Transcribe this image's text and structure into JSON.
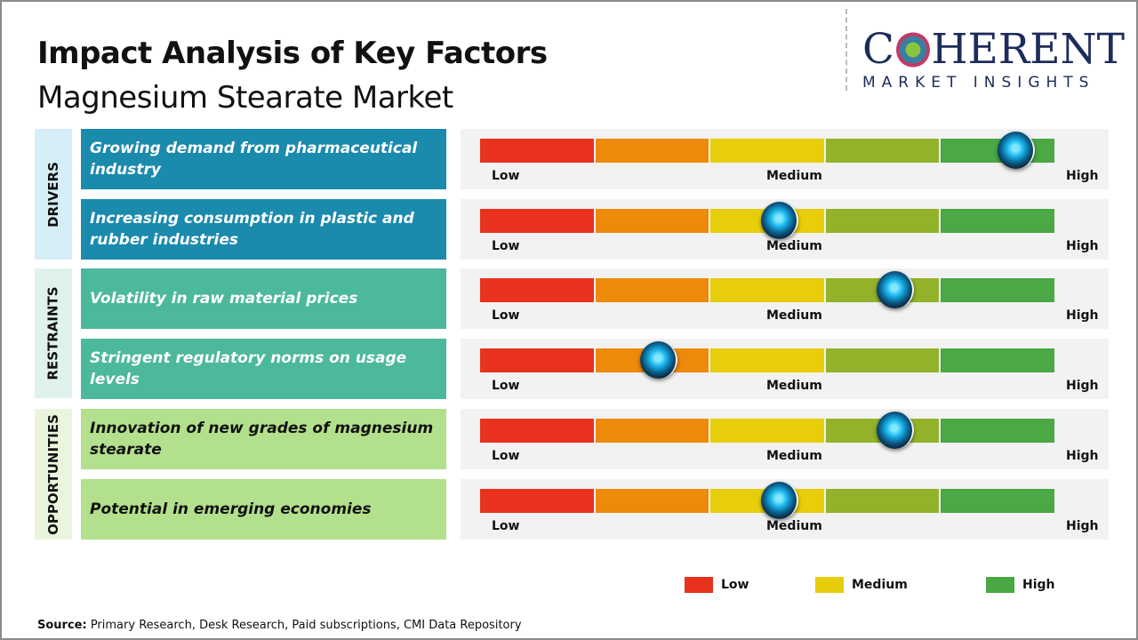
{
  "header": {
    "title": "Impact Analysis of Key Factors",
    "subtitle": "Magnesium Stearate Market"
  },
  "logo": {
    "top_left": "C",
    "top_right": "HERENT",
    "bottom": "MARKET INSIGHTS"
  },
  "colors": {
    "low": "#e8321e",
    "low_mid": "#ee8a0a",
    "medium": "#e8cd0a",
    "mid_high": "#93b22a",
    "high": "#4aa845",
    "drivers": "#1a8aad",
    "restraints": "#4cb89c",
    "opportunities": "#b3e08c"
  },
  "categories": [
    {
      "label": "DRIVERS",
      "color": "#1a8aad",
      "bg": "#d6eef8",
      "text": "#ffffff"
    },
    {
      "label": "RESTRAINTS",
      "color": "#4cb89c",
      "bg": "#dff2ec",
      "text": "#ffffff"
    },
    {
      "label": "OPPORTUNITIES",
      "color": "#b3e08c",
      "bg": "#e9f6dd",
      "text": "#111111"
    }
  ],
  "scale_labels": {
    "low": "Low",
    "medium": "Medium",
    "high": "High"
  },
  "chart_data": {
    "type": "gauge-bars",
    "title": "Impact Analysis of Key Factors",
    "scale": [
      "Low",
      "Medium",
      "High"
    ],
    "range": [
      0,
      1
    ],
    "factors": [
      {
        "category": 0,
        "label": "Growing demand from pharmaceutical industry",
        "impact": 0.93
      },
      {
        "category": 0,
        "label": "Increasing consumption in plastic and rubber industries",
        "impact": 0.52
      },
      {
        "category": 1,
        "label": "Volatility in raw material prices",
        "impact": 0.72
      },
      {
        "category": 1,
        "label": "Stringent regulatory norms on usage levels",
        "impact": 0.31
      },
      {
        "category": 2,
        "label": "Innovation of new grades of magnesium stearate",
        "impact": 0.72
      },
      {
        "category": 2,
        "label": "Potential in emerging economies",
        "impact": 0.52
      }
    ],
    "legend": [
      {
        "label": "Low",
        "color": "#e8321e"
      },
      {
        "label": "Medium",
        "color": "#e8cd0a"
      },
      {
        "label": "High",
        "color": "#4aa845"
      }
    ],
    "legend_position": "bottom-right"
  },
  "source": {
    "label": "Source:",
    "text": " Primary Research, Desk Research, Paid subscriptions, CMI Data Repository"
  }
}
